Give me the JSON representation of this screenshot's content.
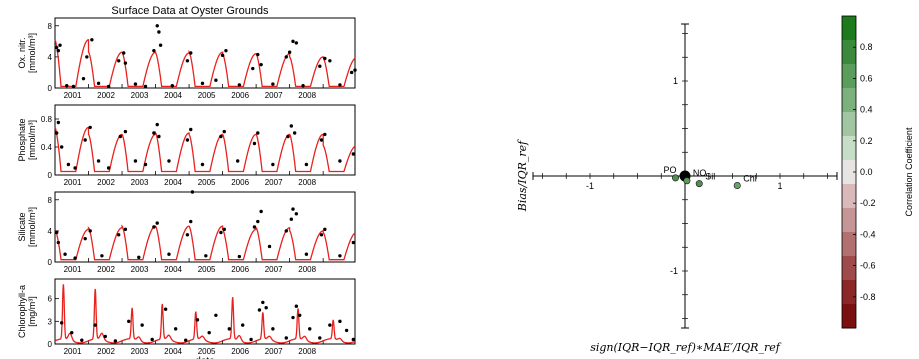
{
  "figure_title": "Surface Data at Oyster Grounds",
  "chart_data": [
    {
      "type": "line",
      "panel": "oxidised-nitrogen",
      "ylabel_line1": "Ox. nitr.",
      "ylabel_line2": "[mmol/m³]",
      "ylim": [
        0,
        9
      ],
      "yticks": [
        {
          "v": 0,
          "t": "0"
        },
        {
          "v": 4,
          "t": "4"
        },
        {
          "v": 8,
          "t": "8"
        }
      ],
      "xticks": [
        "2001",
        "2002",
        "2003",
        "2004",
        "2005",
        "2006",
        "2007",
        "2008"
      ],
      "model_color": "#e8211d",
      "model_series": {
        "name": "model",
        "peaks": [
          6.2,
          4.6,
          4.6,
          4.5,
          4.6,
          4.4,
          4.4,
          4.0,
          3.9
        ],
        "base": 0.2
      },
      "observations": [
        [
          2000.05,
          5.2
        ],
        [
          2000.1,
          4.8
        ],
        [
          2000.15,
          5.5
        ],
        [
          2000.35,
          0.3
        ],
        [
          2000.55,
          0.2
        ],
        [
          2000.85,
          1.2
        ],
        [
          2000.95,
          4.0
        ],
        [
          2001.1,
          6.2
        ],
        [
          2001.3,
          0.6
        ],
        [
          2001.6,
          0.2
        ],
        [
          2001.9,
          3.5
        ],
        [
          2002.05,
          4.5
        ],
        [
          2002.1,
          3.2
        ],
        [
          2002.4,
          0.5
        ],
        [
          2002.7,
          0.2
        ],
        [
          2002.95,
          4.8
        ],
        [
          2003.05,
          8.0
        ],
        [
          2003.1,
          7.2
        ],
        [
          2003.15,
          5.5
        ],
        [
          2003.5,
          0.3
        ],
        [
          2003.95,
          3.5
        ],
        [
          2004.05,
          4.5
        ],
        [
          2004.4,
          0.6
        ],
        [
          2004.8,
          1.0
        ],
        [
          2005.0,
          4.2
        ],
        [
          2005.1,
          4.8
        ],
        [
          2005.5,
          0.4
        ],
        [
          2005.9,
          2.5
        ],
        [
          2006.05,
          4.3
        ],
        [
          2006.15,
          3.0
        ],
        [
          2006.5,
          0.5
        ],
        [
          2006.9,
          4.0
        ],
        [
          2007.0,
          4.6
        ],
        [
          2007.1,
          6.0
        ],
        [
          2007.2,
          5.8
        ],
        [
          2007.4,
          0.3
        ],
        [
          2007.9,
          2.8
        ],
        [
          2008.05,
          3.8
        ],
        [
          2008.2,
          3.5
        ],
        [
          2008.5,
          0.4
        ],
        [
          2008.85,
          2.0
        ],
        [
          2008.95,
          2.3
        ]
      ]
    },
    {
      "type": "line",
      "panel": "phosphate",
      "ylabel_line1": "Phosphate",
      "ylabel_line2": "[mmol/m³]",
      "ylim": [
        0,
        1.0
      ],
      "yticks": [
        {
          "v": 0,
          "t": "0"
        },
        {
          "v": 0.4,
          "t": "0.4"
        },
        {
          "v": 0.8,
          "t": "0.8"
        }
      ],
      "xticks": [
        "2001",
        "2002",
        "2003",
        "2004",
        "2005",
        "2006",
        "2007",
        "2008"
      ],
      "model_color": "#e8211d",
      "model_series": {
        "name": "model",
        "peaks": [
          0.68,
          0.58,
          0.58,
          0.6,
          0.58,
          0.58,
          0.58,
          0.58,
          0.42
        ],
        "base": 0.05
      },
      "observations": [
        [
          2000.05,
          0.6
        ],
        [
          2000.1,
          0.75
        ],
        [
          2000.2,
          0.4
        ],
        [
          2000.4,
          0.15
        ],
        [
          2000.6,
          0.1
        ],
        [
          2000.9,
          0.5
        ],
        [
          2001.05,
          0.68
        ],
        [
          2001.3,
          0.2
        ],
        [
          2001.6,
          0.1
        ],
        [
          2001.95,
          0.55
        ],
        [
          2002.1,
          0.62
        ],
        [
          2002.4,
          0.2
        ],
        [
          2002.7,
          0.15
        ],
        [
          2002.95,
          0.6
        ],
        [
          2003.05,
          0.72
        ],
        [
          2003.1,
          0.55
        ],
        [
          2003.4,
          0.2
        ],
        [
          2003.95,
          0.5
        ],
        [
          2004.05,
          0.65
        ],
        [
          2004.4,
          0.15
        ],
        [
          2004.95,
          0.55
        ],
        [
          2005.05,
          0.62
        ],
        [
          2005.45,
          0.2
        ],
        [
          2005.95,
          0.45
        ],
        [
          2006.05,
          0.6
        ],
        [
          2006.5,
          0.15
        ],
        [
          2006.95,
          0.55
        ],
        [
          2007.05,
          0.7
        ],
        [
          2007.15,
          0.6
        ],
        [
          2007.5,
          0.15
        ],
        [
          2007.95,
          0.5
        ],
        [
          2008.05,
          0.58
        ],
        [
          2008.5,
          0.2
        ],
        [
          2008.9,
          0.3
        ]
      ]
    },
    {
      "type": "line",
      "panel": "silicate",
      "ylabel_line1": "Silicate",
      "ylabel_line2": "[mmol/m³]",
      "ylim": [
        0,
        9
      ],
      "yticks": [
        {
          "v": 0,
          "t": "0"
        },
        {
          "v": 4,
          "t": "4"
        },
        {
          "v": 8,
          "t": "8"
        }
      ],
      "xticks": [
        "2001",
        "2002",
        "2003",
        "2004",
        "2005",
        "2006",
        "2007",
        "2008"
      ],
      "model_color": "#e8211d",
      "model_series": {
        "name": "model",
        "peaks": [
          4.2,
          4.4,
          4.6,
          4.6,
          4.6,
          4.2,
          4.4,
          4.0,
          3.8
        ],
        "base": 0.3
      },
      "observations": [
        [
          2000.05,
          3.8
        ],
        [
          2000.1,
          2.5
        ],
        [
          2000.3,
          1.0
        ],
        [
          2000.6,
          0.5
        ],
        [
          2000.9,
          3.0
        ],
        [
          2001.05,
          4.0
        ],
        [
          2001.4,
          0.8
        ],
        [
          2001.9,
          3.5
        ],
        [
          2002.1,
          4.2
        ],
        [
          2002.5,
          0.6
        ],
        [
          2002.95,
          4.5
        ],
        [
          2003.05,
          5.0
        ],
        [
          2003.4,
          1.0
        ],
        [
          2003.95,
          3.5
        ],
        [
          2004.05,
          5.2
        ],
        [
          2004.1,
          9.0
        ],
        [
          2004.5,
          0.8
        ],
        [
          2004.95,
          3.8
        ],
        [
          2005.05,
          4.2
        ],
        [
          2005.5,
          0.7
        ],
        [
          2005.95,
          4.5
        ],
        [
          2006.05,
          5.2
        ],
        [
          2006.15,
          6.5
        ],
        [
          2006.4,
          2.0
        ],
        [
          2006.9,
          4.0
        ],
        [
          2007.05,
          5.5
        ],
        [
          2007.1,
          6.8
        ],
        [
          2007.2,
          6.2
        ],
        [
          2007.5,
          1.0
        ],
        [
          2007.95,
          3.5
        ],
        [
          2008.05,
          4.2
        ],
        [
          2008.5,
          0.8
        ],
        [
          2008.9,
          2.5
        ]
      ]
    },
    {
      "type": "line",
      "panel": "chlorophyll",
      "ylabel_line1": "Chlorophyll-a",
      "ylabel_line2": "[mg/m³]",
      "ylim": [
        0,
        8.6
      ],
      "yticks": [
        {
          "v": 0,
          "t": "0"
        },
        {
          "v": 3,
          "t": "3"
        },
        {
          "v": 6,
          "t": "6"
        }
      ],
      "xticks": [
        "2001",
        "2002",
        "2003",
        "2004",
        "2005",
        "2006",
        "2007",
        "2008"
      ],
      "xlabel": "date",
      "model_color": "#e8211d",
      "model_series": {
        "name": "model",
        "spikes": [
          [
            2000.25,
            7.2
          ],
          [
            2001.2,
            6.6
          ],
          [
            2002.3,
            4.1
          ],
          [
            2003.2,
            4.6
          ],
          [
            2004.2,
            3.6
          ],
          [
            2005.3,
            5.5
          ],
          [
            2006.2,
            3.5
          ],
          [
            2007.25,
            4.0
          ],
          [
            2008.3,
            2.5
          ]
        ],
        "base": 0.7
      },
      "observations": [
        [
          2000.2,
          2.8
        ],
        [
          2000.5,
          1.5
        ],
        [
          2000.8,
          0.5
        ],
        [
          2001.2,
          2.5
        ],
        [
          2001.5,
          1.0
        ],
        [
          2001.8,
          0.4
        ],
        [
          2002.2,
          3.0
        ],
        [
          2002.6,
          2.5
        ],
        [
          2002.9,
          0.6
        ],
        [
          2003.3,
          4.6
        ],
        [
          2003.6,
          2.0
        ],
        [
          2003.9,
          0.5
        ],
        [
          2004.25,
          3.2
        ],
        [
          2004.6,
          1.5
        ],
        [
          2004.8,
          3.8
        ],
        [
          2005.2,
          2.0
        ],
        [
          2005.6,
          2.5
        ],
        [
          2005.85,
          0.6
        ],
        [
          2006.1,
          4.5
        ],
        [
          2006.2,
          5.5
        ],
        [
          2006.3,
          4.8
        ],
        [
          2006.5,
          2.0
        ],
        [
          2006.9,
          0.8
        ],
        [
          2007.1,
          3.5
        ],
        [
          2007.2,
          5.0
        ],
        [
          2007.3,
          3.8
        ],
        [
          2007.6,
          2.0
        ],
        [
          2007.9,
          0.8
        ],
        [
          2008.2,
          2.5
        ],
        [
          2008.5,
          3.0
        ],
        [
          2008.7,
          1.8
        ],
        [
          2008.9,
          0.6
        ]
      ]
    },
    {
      "type": "scatter",
      "panel": "target-diagram",
      "xlabel": "sign(IQR−IQR_ref)∗MAE′/IQR_ref",
      "ylabel": "Bias/IQR_ref",
      "xlim": [
        -1.6,
        1.6
      ],
      "ylim": [
        -1.6,
        1.6
      ],
      "xtick_labels": [
        {
          "v": -1,
          "t": "-1"
        },
        {
          "v": 1,
          "t": "1"
        }
      ],
      "ytick_labels": [
        {
          "v": 1,
          "t": "1"
        },
        {
          "v": -1,
          "t": "-1"
        }
      ],
      "points": [
        {
          "label": "PO",
          "x": -0.1,
          "y": -0.02,
          "r": 0.55,
          "color": "#4f8f4f"
        },
        {
          "label": "NO",
          "x": 0.02,
          "y": -0.05,
          "r": 0.6,
          "color": "#5a9a5a"
        },
        {
          "label": "Sil",
          "x": 0.15,
          "y": -0.08,
          "r": 0.55,
          "color": "#4f8f4f"
        },
        {
          "label": "Chl",
          "x": 0.55,
          "y": -0.1,
          "r": 0.5,
          "color": "#67a467"
        }
      ],
      "reference_point": {
        "x": 0,
        "y": 0
      },
      "colorbar": {
        "label": "Correlation Coefficient",
        "range": [
          -1,
          1
        ],
        "ticks": [
          "0.8",
          "0.6",
          "0.4",
          "0.2",
          "0.0",
          "-0.2",
          "-0.4",
          "-0.6",
          "-0.8"
        ],
        "colors": [
          "#1d7a1d",
          "#3b8a3b",
          "#5b9d5b",
          "#7cb07c",
          "#a1c6a1",
          "#c6ddc6",
          "#e7e4e4",
          "#d9b9b9",
          "#c69595",
          "#b37070",
          "#a04b4b",
          "#8c2727",
          "#7a1111"
        ]
      }
    }
  ]
}
